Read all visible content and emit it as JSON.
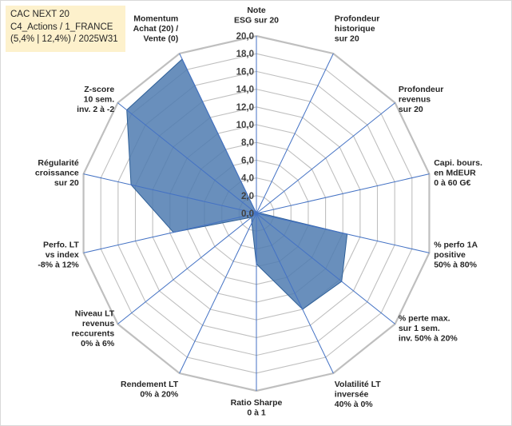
{
  "legend_box": {
    "line1": "CAC NEXT 20",
    "line2": "C4_Actions / 1_FRANCE",
    "line3": "(5,4% | 12,4%) / 2025W31"
  },
  "colors": {
    "fill": "#4f7bb0",
    "stroke": "#2e5f97",
    "spoke": "#4472c4",
    "grid": "#bfbfbf",
    "title_bg": "#fdf1cc"
  },
  "chart_data": {
    "type": "radar",
    "title": "",
    "rmin": 0,
    "rmax": 20,
    "ticks": [
      "0,0",
      "2,0",
      "4,0",
      "6,0",
      "8,0",
      "10,0",
      "12,0",
      "14,0",
      "16,0",
      "18,0",
      "20,0"
    ],
    "tick_values": [
      0,
      2,
      4,
      6,
      8,
      10,
      12,
      14,
      16,
      18,
      20
    ],
    "grid": true,
    "categories": [
      [
        "Note",
        "ESG sur 20"
      ],
      [
        "Profondeur",
        "historique",
        "sur 20"
      ],
      [
        "Profondeur",
        "revenus",
        "sur 20"
      ],
      [
        "Capi. bours.",
        "en MdEUR",
        "0 à 60 G€"
      ],
      [
        "% perfo 1A",
        "positive",
        "50% à 80%"
      ],
      [
        "% perte max.",
        "sur 1 sem.",
        "inv. 50% à 20%"
      ],
      [
        "Volatilité LT",
        "inversée",
        "40% à 0%"
      ],
      [
        "Ratio Sharpe",
        "0 à 1"
      ],
      [
        "Rendement LT",
        "0% à 20%"
      ],
      [
        "Niveau LT",
        "revenus",
        "reccurents",
        "0% à 6%"
      ],
      [
        "Perfo. LT",
        "vs index",
        "-8% à 12%"
      ],
      [
        "Régularité",
        "croissance",
        "sur 20"
      ],
      [
        "Z-score",
        "10 sem.",
        "inv. 2 à -2"
      ],
      [
        "Momentum",
        "Achat (20) /",
        "Vente (0)"
      ]
    ],
    "series": [
      {
        "values": [
          0,
          0,
          0,
          0.3,
          10.5,
          12.3,
          12.0,
          5.7,
          1.2,
          0.7,
          9.6,
          14.5,
          18.7,
          19.3
        ]
      }
    ]
  }
}
